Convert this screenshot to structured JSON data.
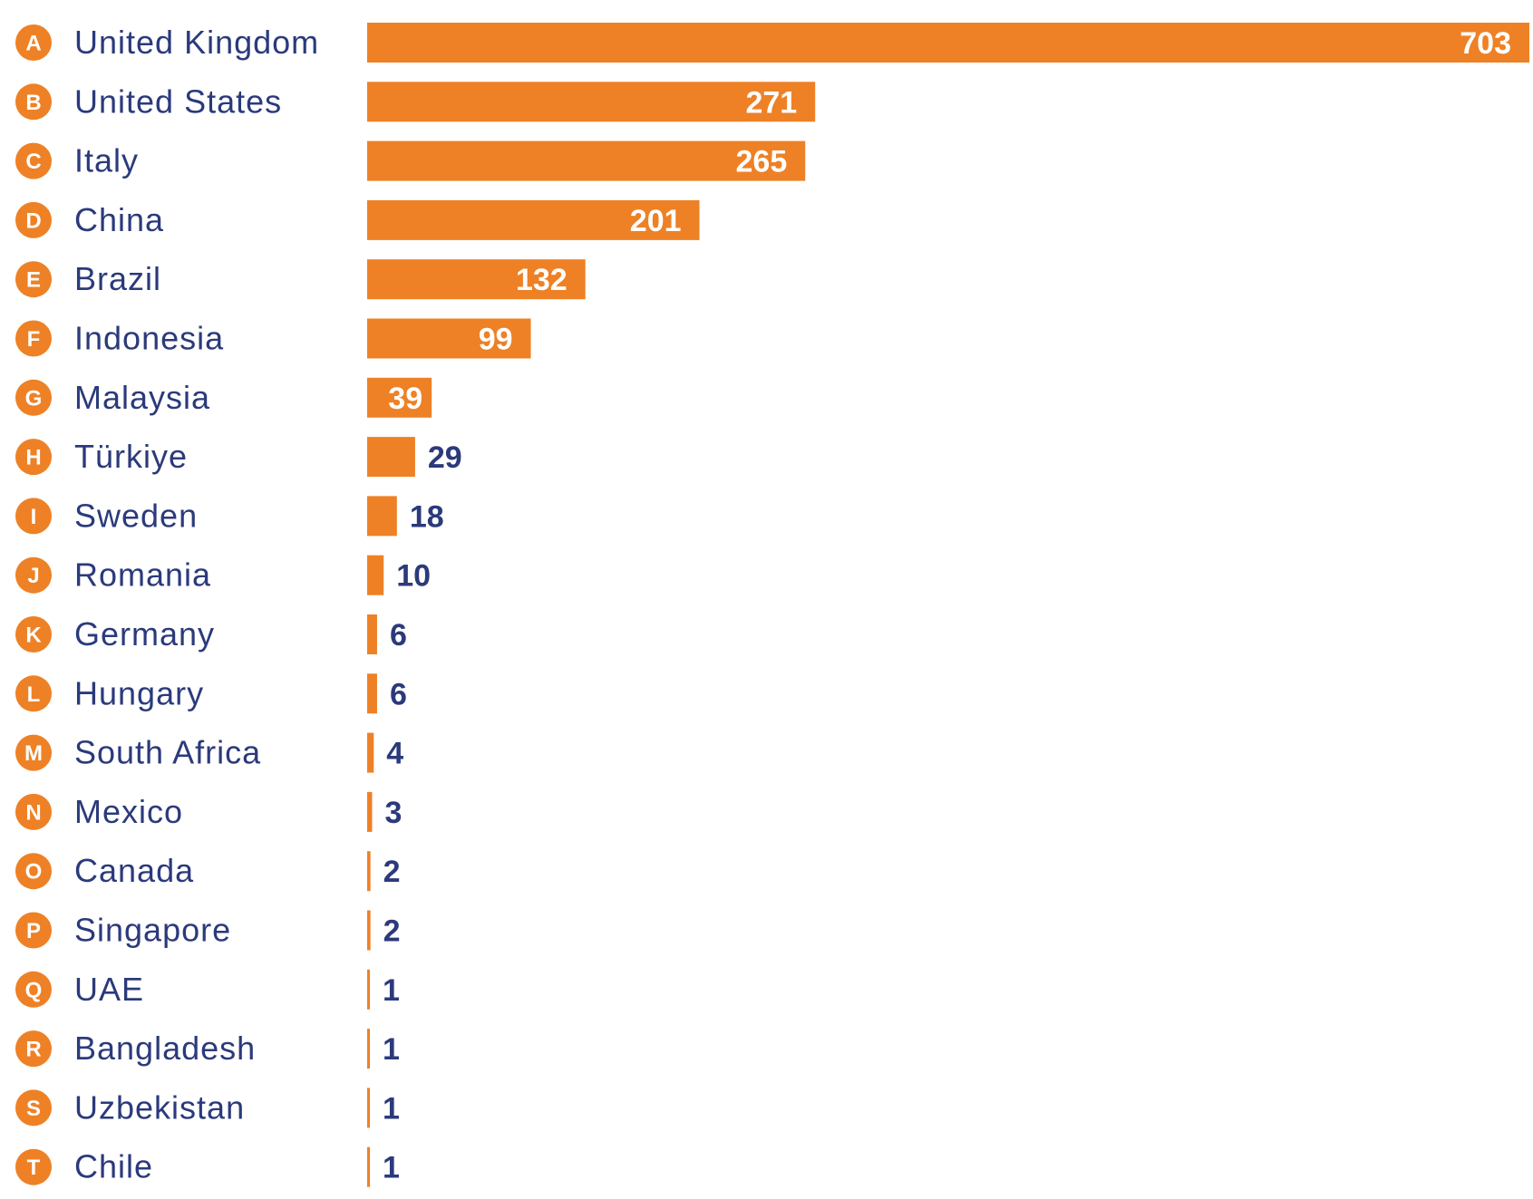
{
  "chart_data": {
    "type": "bar",
    "orientation": "horizontal",
    "categories": [
      "United Kingdom",
      "United States",
      "Italy",
      "China",
      "Brazil",
      "Indonesia",
      "Malaysia",
      "Türkiye",
      "Sweden",
      "Romania",
      "Germany",
      "Hungary",
      "South Africa",
      "Mexico",
      "Canada",
      "Singapore",
      "UAE",
      "Bangladesh",
      "Uzbekistan",
      "Chile"
    ],
    "markers": [
      "A",
      "B",
      "C",
      "D",
      "E",
      "F",
      "G",
      "H",
      "I",
      "J",
      "K",
      "L",
      "M",
      "N",
      "O",
      "P",
      "Q",
      "R",
      "S",
      "T"
    ],
    "values": [
      703,
      271,
      265,
      201,
      132,
      99,
      39,
      29,
      18,
      10,
      6,
      6,
      4,
      3,
      2,
      2,
      1,
      1,
      1,
      1
    ],
    "xlim": [
      0,
      703
    ],
    "grid": false,
    "legend": false,
    "colors": {
      "bar": "#ee8125",
      "marker": "#ee8125",
      "label": "#2b3a7b",
      "value_inside": "#ffffff",
      "value_outside": "#2b3a7b"
    }
  }
}
